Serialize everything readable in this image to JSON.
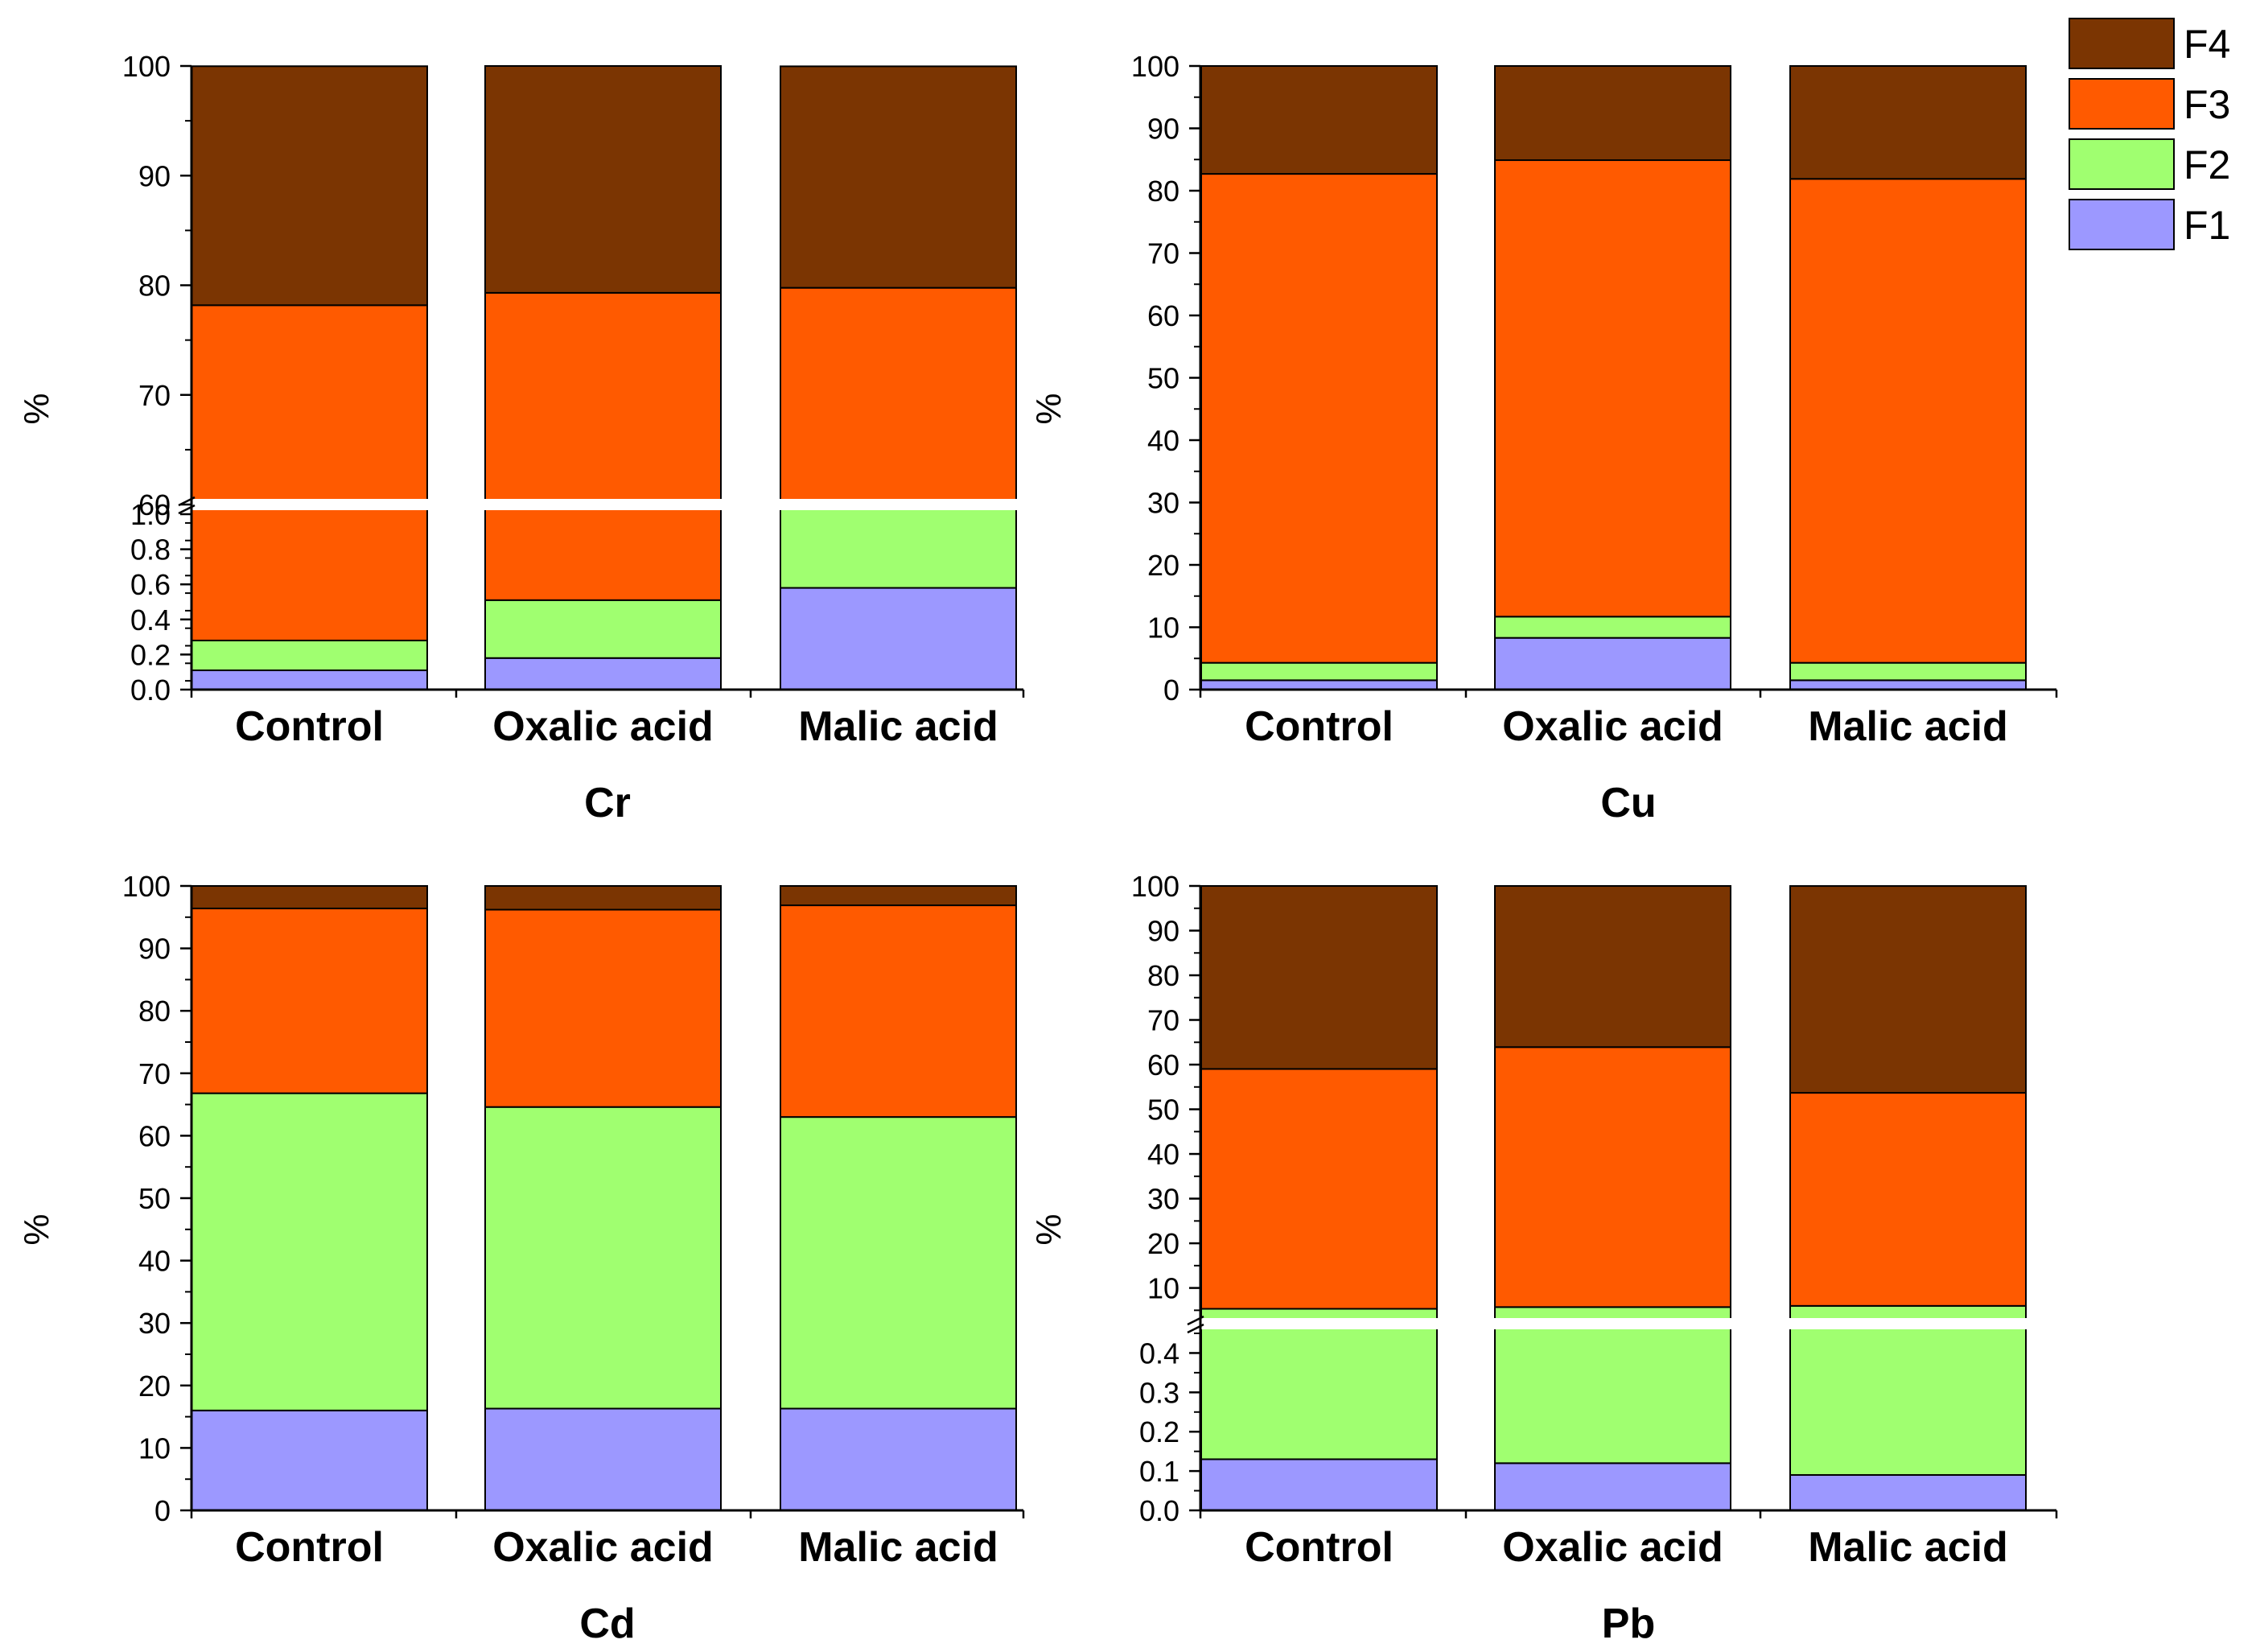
{
  "legend": {
    "items": [
      {
        "name": "F4",
        "color": "#7B3502"
      },
      {
        "name": "F3",
        "color": "#FF5A00"
      },
      {
        "name": "F2",
        "color": "#A0FF70"
      },
      {
        "name": "F1",
        "color": "#9C98FF"
      }
    ]
  },
  "chart_data": [
    {
      "type": "bar",
      "stacked": true,
      "title": "Cr",
      "ylabel": "%",
      "categories": [
        "Control",
        "Oxalic acid",
        "Malic acid"
      ],
      "axis_break": true,
      "lower_range": [
        0,
        1.0
      ],
      "lower_ticks": [
        "0.0",
        "0.2",
        "0.4",
        "0.6",
        "0.8",
        "1.0"
      ],
      "upper_range": [
        60,
        100
      ],
      "upper_ticks": [
        "60",
        "70",
        "80",
        "90",
        "100"
      ],
      "series": [
        {
          "name": "F1",
          "values": [
            0.11,
            0.18,
            0.58
          ]
        },
        {
          "name": "F2",
          "values": [
            0.17,
            0.33,
            0.49
          ]
        },
        {
          "name": "F3",
          "values": [
            77.9,
            78.8,
            78.7
          ]
        },
        {
          "name": "F4",
          "values": [
            21.8,
            20.7,
            20.2
          ]
        }
      ],
      "color": [
        "#9C98FF",
        "#A0FF70",
        "#FF5A00",
        "#7B3502"
      ]
    },
    {
      "type": "bar",
      "stacked": true,
      "title": "Cu",
      "ylabel": "%",
      "categories": [
        "Control",
        "Oxalic acid",
        "Malic acid"
      ],
      "ylim": [
        0,
        100
      ],
      "yticks": [
        "0",
        "10",
        "20",
        "30",
        "40",
        "50",
        "60",
        "70",
        "80",
        "90",
        "100"
      ],
      "series": [
        {
          "name": "F1",
          "values": [
            1.5,
            8.3,
            1.5
          ]
        },
        {
          "name": "F2",
          "values": [
            2.8,
            3.4,
            2.8
          ]
        },
        {
          "name": "F3",
          "values": [
            78.4,
            73.2,
            77.6
          ]
        },
        {
          "name": "F4",
          "values": [
            17.3,
            15.1,
            18.1
          ]
        }
      ]
    },
    {
      "type": "bar",
      "stacked": true,
      "title": "Cd",
      "ylabel": "%",
      "categories": [
        "Control",
        "Oxalic acid",
        "Malic acid"
      ],
      "ylim": [
        0,
        100
      ],
      "yticks": [
        "0",
        "10",
        "20",
        "30",
        "40",
        "50",
        "60",
        "70",
        "80",
        "90",
        "100"
      ],
      "series": [
        {
          "name": "F1",
          "values": [
            16.0,
            16.3,
            16.3
          ]
        },
        {
          "name": "F2",
          "values": [
            50.8,
            48.3,
            46.7
          ]
        },
        {
          "name": "F3",
          "values": [
            29.6,
            31.6,
            33.9
          ]
        },
        {
          "name": "F4",
          "values": [
            3.6,
            3.8,
            3.1
          ]
        }
      ]
    },
    {
      "type": "bar",
      "stacked": true,
      "title": "Pb",
      "ylabel": "%",
      "categories": [
        "Control",
        "Oxalic acid",
        "Malic acid"
      ],
      "axis_break": true,
      "lower_range": [
        0,
        0.45
      ],
      "lower_ticks": [
        "0.0",
        "0.1",
        "0.2",
        "0.3",
        "0.4"
      ],
      "upper_range": [
        2,
        100
      ],
      "upper_ticks": [
        "10",
        "20",
        "30",
        "40",
        "50",
        "60",
        "70",
        "80",
        "90",
        "100"
      ],
      "series": [
        {
          "name": "F1",
          "values": [
            0.13,
            0.12,
            0.09
          ]
        },
        {
          "name": "F2",
          "values": [
            5.2,
            5.6,
            5.9
          ]
        },
        {
          "name": "F3",
          "values": [
            53.7,
            58.2,
            47.7
          ]
        },
        {
          "name": "F4",
          "values": [
            41.0,
            36.1,
            46.3
          ]
        }
      ]
    }
  ]
}
